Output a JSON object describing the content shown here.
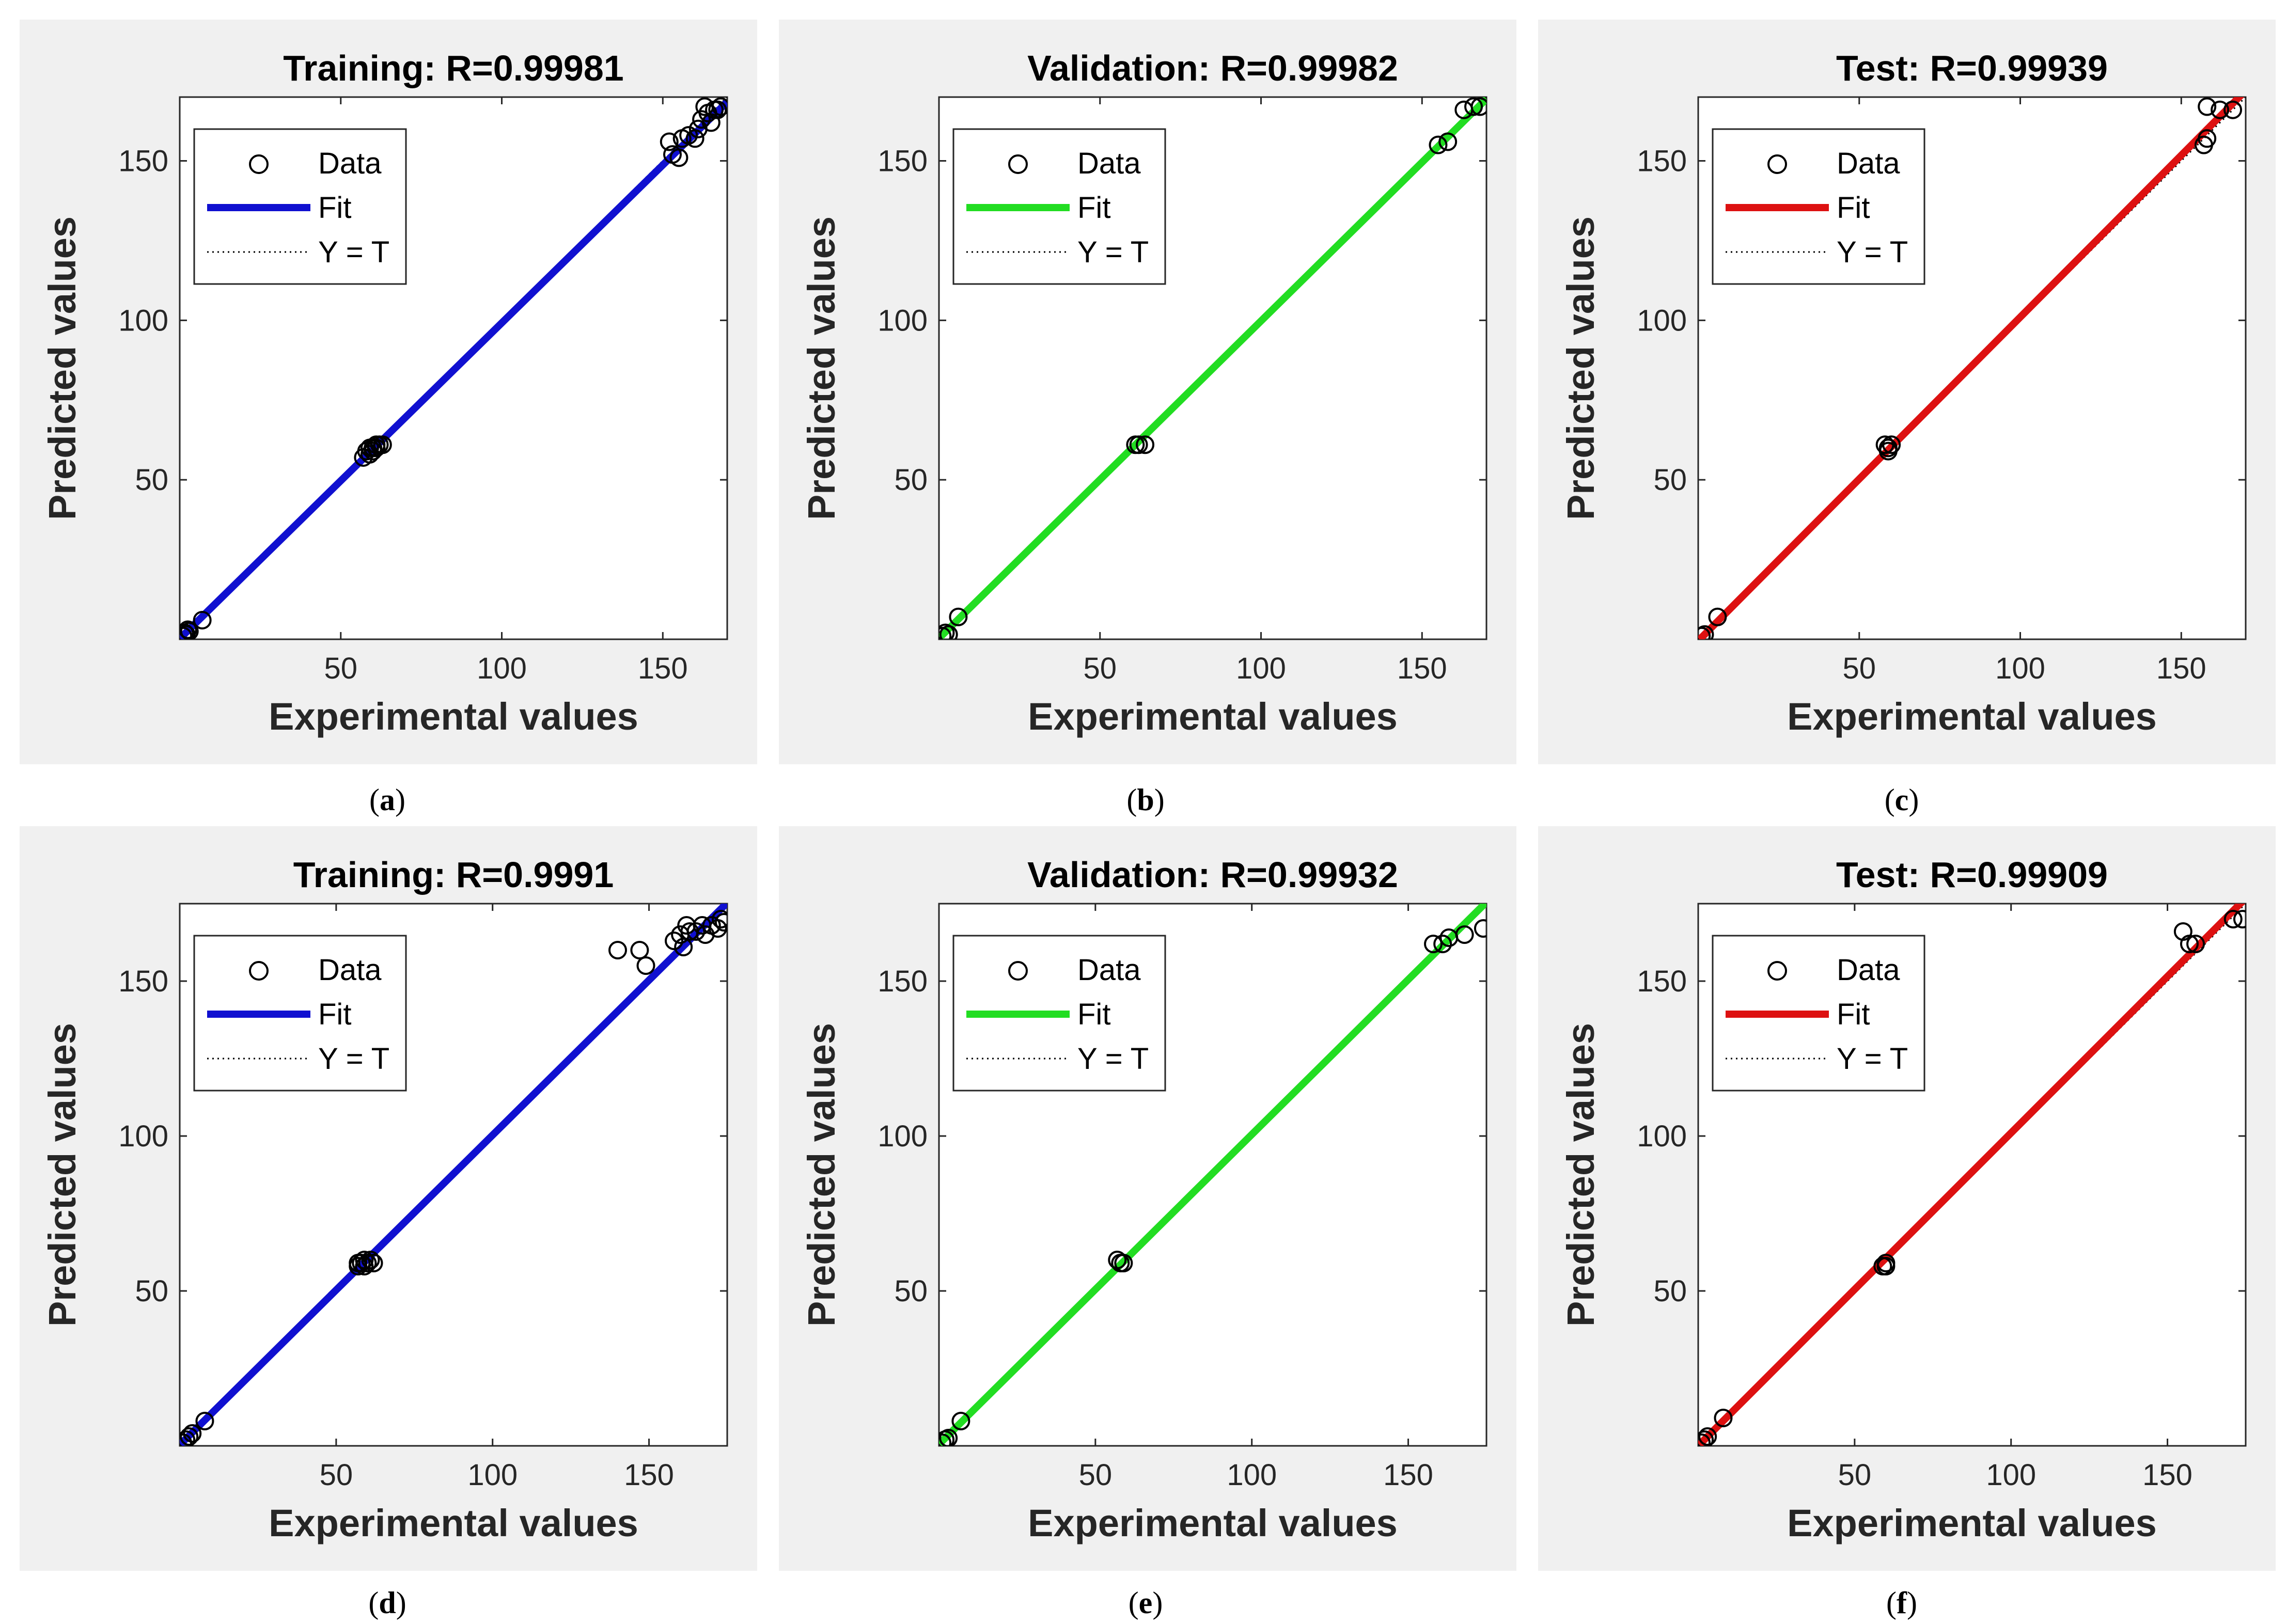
{
  "colors": {
    "blue": "#1010d0",
    "green": "#22dd22",
    "red": "#dd1111",
    "axis": "#262626",
    "background": "#f0f0f0"
  },
  "chart_data": [
    {
      "type": "scatter",
      "panel": "a",
      "caption": "a",
      "title": "Training: R=0.99981",
      "xlabel": "Experimental values",
      "ylabel": "Predicted values",
      "xlim": [
        0,
        170
      ],
      "ylim": [
        0,
        170
      ],
      "xticks": [
        "50",
        "100",
        "150"
      ],
      "yticks": [
        "50",
        "100",
        "150"
      ],
      "fit_color": "#1010d0",
      "fit": {
        "slope": 0.99,
        "intercept": 0.2
      },
      "legend": [
        "Data",
        "Fit",
        "Y = T"
      ],
      "points": [
        [
          1,
          1
        ],
        [
          2,
          1.5
        ],
        [
          3,
          2.5
        ],
        [
          2.5,
          3
        ],
        [
          1.5,
          2
        ],
        [
          7,
          6
        ],
        [
          57,
          57
        ],
        [
          58,
          59
        ],
        [
          59,
          60
        ],
        [
          60,
          59
        ],
        [
          61,
          60
        ],
        [
          62,
          61
        ],
        [
          59,
          58
        ],
        [
          61,
          61
        ],
        [
          63,
          61
        ],
        [
          60,
          60
        ],
        [
          152,
          156
        ],
        [
          153,
          152
        ],
        [
          155,
          151
        ],
        [
          156,
          157
        ],
        [
          158,
          158
        ],
        [
          160,
          157
        ],
        [
          161,
          160
        ],
        [
          162,
          163
        ],
        [
          163,
          167
        ],
        [
          164,
          165
        ],
        [
          165,
          162
        ],
        [
          166,
          166
        ],
        [
          168,
          167
        ],
        [
          167,
          166
        ]
      ]
    },
    {
      "type": "scatter",
      "panel": "b",
      "caption": "b",
      "title": "Validation: R=0.99982",
      "xlabel": "Experimental values",
      "ylabel": "Predicted values",
      "xlim": [
        0,
        170
      ],
      "ylim": [
        0,
        170
      ],
      "xticks": [
        "50",
        "100",
        "150"
      ],
      "yticks": [
        "50",
        "100",
        "150"
      ],
      "fit_color": "#22dd22",
      "fit": {
        "slope": 0.995,
        "intercept": 0.3
      },
      "legend": [
        "Data",
        "Fit",
        "Y = T"
      ],
      "points": [
        [
          1,
          1
        ],
        [
          2,
          2
        ],
        [
          3,
          1.5
        ],
        [
          6,
          7
        ],
        [
          61,
          61
        ],
        [
          62,
          61
        ],
        [
          64,
          61
        ],
        [
          155,
          155
        ],
        [
          158,
          156
        ],
        [
          163,
          166
        ],
        [
          166,
          167
        ],
        [
          168,
          167
        ]
      ]
    },
    {
      "type": "scatter",
      "panel": "c",
      "caption": "c",
      "title": "Test: R=0.99939",
      "xlabel": "Experimental values",
      "ylabel": "Predicted values",
      "xlim": [
        0,
        170
      ],
      "ylim": [
        0,
        170
      ],
      "xticks": [
        "50",
        "100",
        "150"
      ],
      "yticks": [
        "50",
        "100",
        "150"
      ],
      "fit_color": "#dd1111",
      "fit": {
        "slope": 1.015,
        "intercept": -0.5
      },
      "legend": [
        "Data",
        "Fit",
        "Y = T"
      ],
      "points": [
        [
          1,
          1
        ],
        [
          2,
          1.5
        ],
        [
          6,
          7
        ],
        [
          58,
          61
        ],
        [
          59,
          60
        ],
        [
          60,
          61
        ],
        [
          59,
          59
        ],
        [
          157,
          155
        ],
        [
          158,
          157
        ],
        [
          158,
          167
        ],
        [
          162,
          166
        ],
        [
          166,
          166
        ]
      ]
    },
    {
      "type": "scatter",
      "panel": "d",
      "caption": "d",
      "title": "Training: R=0.9991",
      "xlabel": "Experimental values",
      "ylabel": "Predicted values",
      "xlim": [
        0,
        175
      ],
      "ylim": [
        0,
        175
      ],
      "xticks": [
        "50",
        "100",
        "150"
      ],
      "yticks": [
        "50",
        "100",
        "150"
      ],
      "fit_color": "#1010d0",
      "fit": {
        "slope": 1.0,
        "intercept": 0.3
      },
      "legend": [
        "Data",
        "Fit",
        "Y = T"
      ],
      "points": [
        [
          1,
          1
        ],
        [
          2,
          2
        ],
        [
          3,
          3
        ],
        [
          4,
          4
        ],
        [
          8,
          8
        ],
        [
          57,
          58
        ],
        [
          58,
          59
        ],
        [
          59,
          58
        ],
        [
          60,
          59
        ],
        [
          61,
          60
        ],
        [
          57,
          59
        ],
        [
          59,
          60
        ],
        [
          62,
          59
        ],
        [
          140,
          160
        ],
        [
          147,
          160
        ],
        [
          149,
          155
        ],
        [
          158,
          163
        ],
        [
          160,
          165
        ],
        [
          161,
          161
        ],
        [
          162,
          168
        ],
        [
          163,
          166
        ],
        [
          165,
          166
        ],
        [
          167,
          168
        ],
        [
          168,
          165
        ],
        [
          170,
          168
        ],
        [
          172,
          167
        ],
        [
          173,
          170
        ],
        [
          174,
          169
        ]
      ]
    },
    {
      "type": "scatter",
      "panel": "e",
      "caption": "e",
      "title": "Validation: R=0.99932",
      "xlabel": "Experimental values",
      "ylabel": "Predicted values",
      "xlim": [
        0,
        175
      ],
      "ylim": [
        0,
        175
      ],
      "xticks": [
        "50",
        "100",
        "150"
      ],
      "yticks": [
        "50",
        "100",
        "150"
      ],
      "fit_color": "#22dd22",
      "fit": {
        "slope": 1.0,
        "intercept": 0.5
      },
      "legend": [
        "Data",
        "Fit",
        "Y = T"
      ],
      "points": [
        [
          1,
          1
        ],
        [
          2,
          2
        ],
        [
          3,
          2.5
        ],
        [
          7,
          8
        ],
        [
          57,
          60
        ],
        [
          58,
          59
        ],
        [
          59,
          59
        ],
        [
          158,
          162
        ],
        [
          161,
          162
        ],
        [
          163,
          164
        ],
        [
          168,
          165
        ],
        [
          174,
          167
        ]
      ]
    },
    {
      "type": "scatter",
      "panel": "f",
      "caption": "f",
      "title": "Test: R=0.99909",
      "xlabel": "Experimental values",
      "ylabel": "Predicted values",
      "xlim": [
        0,
        175
      ],
      "ylim": [
        0,
        175
      ],
      "xticks": [
        "50",
        "100",
        "150"
      ],
      "yticks": [
        "50",
        "100",
        "150"
      ],
      "fit_color": "#dd1111",
      "fit": {
        "slope": 1.01,
        "intercept": 0.0
      },
      "legend": [
        "Data",
        "Fit",
        "Y = T"
      ],
      "points": [
        [
          1,
          1
        ],
        [
          2,
          2
        ],
        [
          3,
          3
        ],
        [
          8,
          9
        ],
        [
          59,
          58
        ],
        [
          60,
          59
        ],
        [
          60,
          58
        ],
        [
          155,
          166
        ],
        [
          157,
          162
        ],
        [
          159,
          162
        ],
        [
          171,
          170
        ],
        [
          174,
          170
        ]
      ]
    }
  ]
}
